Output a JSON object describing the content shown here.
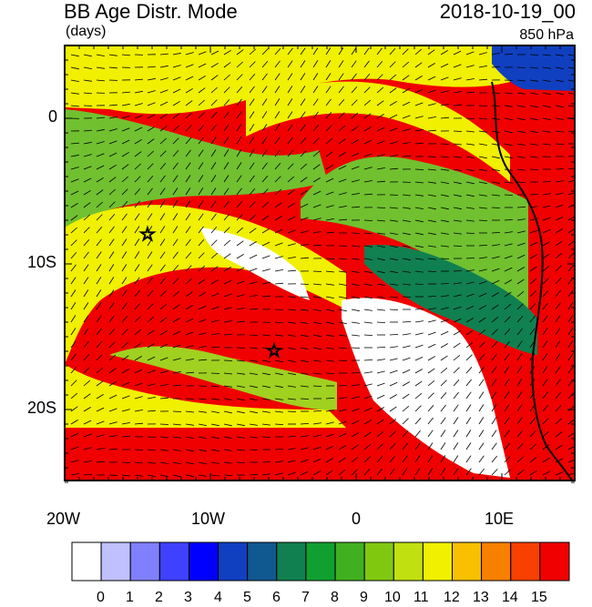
{
  "header": {
    "title": "BB Age Distr. Mode",
    "units": "(days)",
    "datetime": "2018-10-19_00",
    "level": "850 hPa"
  },
  "axes": {
    "lat_labels": [
      "0",
      "10S",
      "20S"
    ],
    "lon_labels": [
      "20W",
      "10W",
      "0",
      "10E"
    ],
    "lon_range": [
      -20,
      15
    ],
    "lat_range": [
      -25,
      5
    ]
  },
  "markers": [
    {
      "name": "star",
      "lon": -14.5,
      "lat": -8
    },
    {
      "name": "star",
      "lon": -5.7,
      "lat": -16
    }
  ],
  "colorbar": {
    "labels": [
      "0",
      "1",
      "2",
      "3",
      "4",
      "5",
      "6",
      "7",
      "8",
      "9",
      "10",
      "11",
      "12",
      "13",
      "14",
      "15"
    ],
    "colors": [
      "#ffffff",
      "#c0c0ff",
      "#8080ff",
      "#4040ff",
      "#0000ff",
      "#1040c0",
      "#105890",
      "#108050",
      "#10a030",
      "#40b020",
      "#80c810",
      "#c0e010",
      "#f0f000",
      "#f8c000",
      "#f88000",
      "#f84000",
      "#f00000"
    ]
  },
  "map_colors": {
    "red": "#f00000",
    "yellow": "#f0f000",
    "ygreen": "#a0d020",
    "lgreen": "#70c030",
    "dgreen": "#108050",
    "white": "#ffffff",
    "orange": "#f8c000",
    "blue": "#1040c0",
    "coast": "#000000"
  }
}
